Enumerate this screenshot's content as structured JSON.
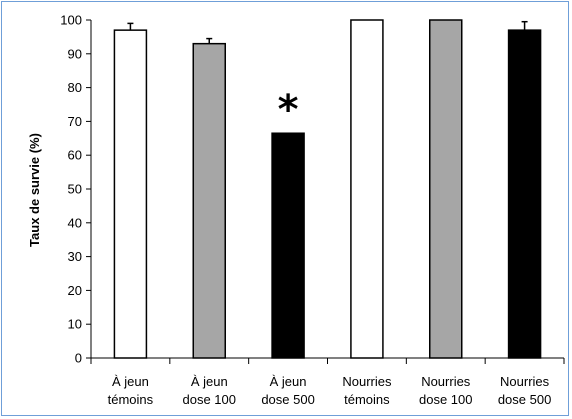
{
  "chart_data": {
    "type": "bar",
    "title": "",
    "ylabel": "Taux de survie (%)",
    "xlabel": "",
    "ylim": [
      0,
      100
    ],
    "yticks": [
      0,
      10,
      20,
      30,
      40,
      50,
      60,
      70,
      80,
      90,
      100
    ],
    "categories": [
      [
        "À jeun",
        "témoins"
      ],
      [
        "À jeun",
        "dose 100"
      ],
      [
        "À jeun",
        "dose 500"
      ],
      [
        "Nourries",
        "témoins"
      ],
      [
        "Nourries",
        "dose 100"
      ],
      [
        "Nourries",
        "dose 500"
      ]
    ],
    "values": [
      97,
      93,
      66.5,
      100,
      100,
      97
    ],
    "errors": [
      2,
      1.5,
      0,
      0,
      0,
      2.5
    ],
    "colors": [
      "#ffffff",
      "#a6a6a6",
      "#000000",
      "#ffffff",
      "#a6a6a6",
      "#000000"
    ],
    "grid": false,
    "annotations": [
      {
        "category_index": 2,
        "text": "*"
      }
    ]
  },
  "frame_color": "#6f9fd8"
}
